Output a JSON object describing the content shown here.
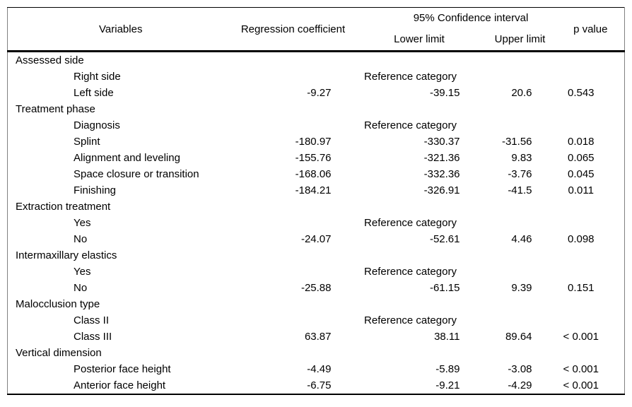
{
  "table": {
    "header": {
      "variables": "Variables",
      "regression_coefficient": "Regression coefficient",
      "confidence_interval": "95% Confidence interval",
      "lower_limit": "Lower limit",
      "upper_limit": "Upper limit",
      "p_value": "p value"
    },
    "reference_label": "Reference category",
    "rows": [
      {
        "type": "group",
        "label": "Assessed side"
      },
      {
        "type": "reference",
        "label": "Right side"
      },
      {
        "type": "data",
        "label": "Left side",
        "coef": "-9.27",
        "lower": "-39.15",
        "upper": "20.6",
        "p": "0.543"
      },
      {
        "type": "group",
        "label": "Treatment phase"
      },
      {
        "type": "reference",
        "label": "Diagnosis"
      },
      {
        "type": "data",
        "label": "Splint",
        "coef": "-180.97",
        "lower": "-330.37",
        "upper": "-31.56",
        "p": "0.018"
      },
      {
        "type": "data",
        "label": "Alignment and leveling",
        "coef": "-155.76",
        "lower": "-321.36",
        "upper": "9.83",
        "p": "0.065"
      },
      {
        "type": "data",
        "label": "Space closure or transition",
        "coef": "-168.06",
        "lower": "-332.36",
        "upper": "-3.76",
        "p": "0.045"
      },
      {
        "type": "data",
        "label": "Finishing",
        "coef": "-184.21",
        "lower": "-326.91",
        "upper": "-41.5",
        "p": "0.011"
      },
      {
        "type": "group",
        "label": "Extraction treatment"
      },
      {
        "type": "reference",
        "label": "Yes"
      },
      {
        "type": "data",
        "label": "No",
        "coef": "-24.07",
        "lower": "-52.61",
        "upper": "4.46",
        "p": "0.098"
      },
      {
        "type": "group",
        "label": "Intermaxillary elastics"
      },
      {
        "type": "reference",
        "label": "Yes"
      },
      {
        "type": "data",
        "label": "No",
        "coef": "-25.88",
        "lower": "-61.15",
        "upper": "9.39",
        "p": "0.151"
      },
      {
        "type": "group",
        "label": "Malocclusion type"
      },
      {
        "type": "reference",
        "label": "Class II"
      },
      {
        "type": "data",
        "label": "Class III",
        "coef": "63.87",
        "lower": "38.11",
        "upper": "89.64",
        "p": "< 0.001"
      },
      {
        "type": "group",
        "label": "Vertical dimension"
      },
      {
        "type": "data",
        "label": "Posterior face height",
        "coef": "-4.49",
        "lower": "-5.89",
        "upper": "-3.08",
        "p": "< 0.001"
      },
      {
        "type": "data",
        "label": "Anterior face height",
        "coef": "-6.75",
        "lower": "-9.21",
        "upper": "-4.29",
        "p": "< 0.001"
      }
    ]
  }
}
